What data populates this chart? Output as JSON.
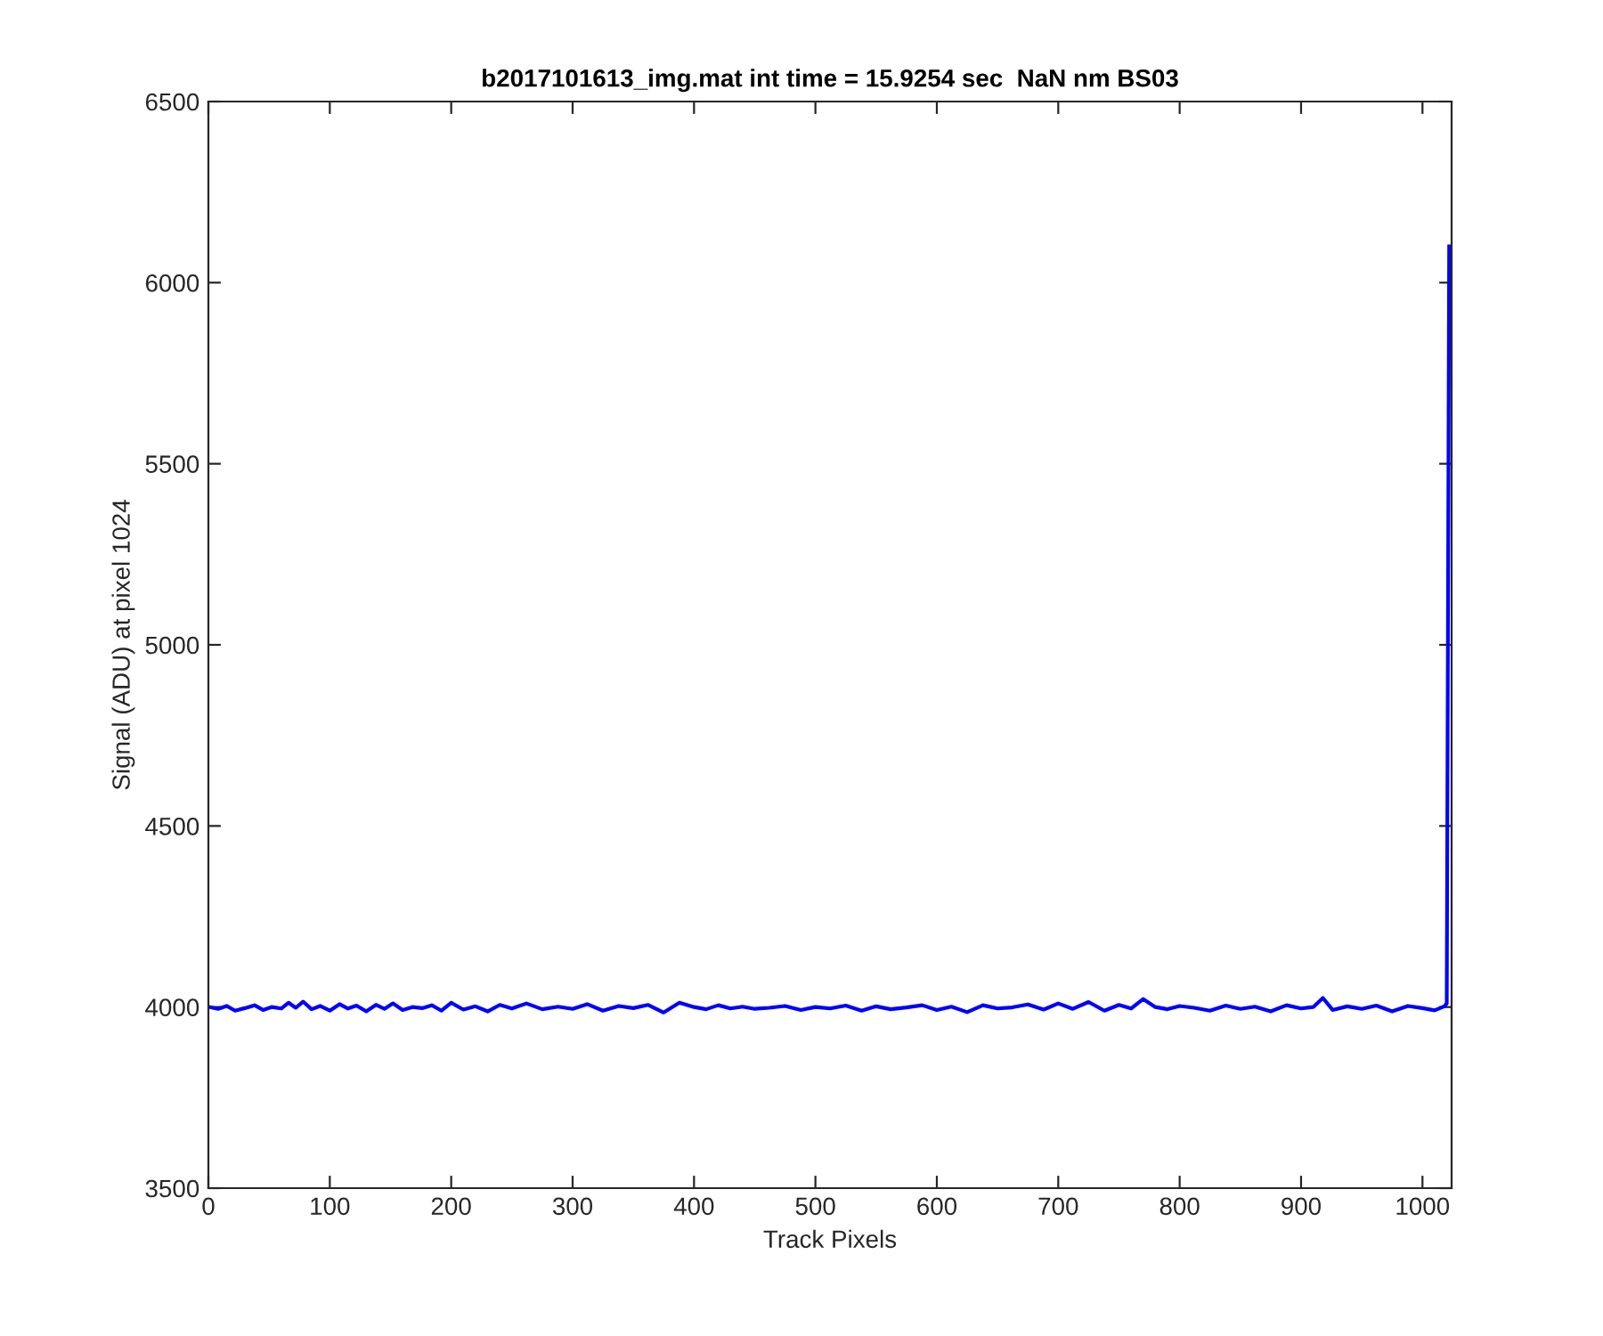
{
  "chart_data": {
    "type": "line",
    "title": "b2017101613_img.mat int time = 15.9254 sec  NaN nm BS03",
    "xlabel": "Track Pixels",
    "ylabel": "Signal (ADU) at pixel 1024",
    "xlim": [
      0,
      1024
    ],
    "ylim": [
      3500,
      6500
    ],
    "xticks": [
      0,
      100,
      200,
      300,
      400,
      500,
      600,
      700,
      800,
      900,
      1000
    ],
    "yticks": [
      3500,
      4000,
      4500,
      5000,
      5500,
      6000,
      6500
    ],
    "grid": false,
    "marker": "none",
    "line_style": "solid",
    "series": [
      {
        "color": "#0000ff",
        "x": [
          1,
          8,
          15,
          22,
          30,
          38,
          45,
          52,
          60,
          66,
          72,
          78,
          85,
          92,
          100,
          108,
          115,
          122,
          130,
          138,
          145,
          152,
          160,
          168,
          176,
          184,
          192,
          200,
          210,
          220,
          230,
          240,
          250,
          262,
          275,
          288,
          300,
          312,
          325,
          338,
          350,
          362,
          375,
          388,
          400,
          410,
          420,
          430,
          440,
          450,
          462,
          475,
          488,
          500,
          512,
          525,
          538,
          550,
          562,
          575,
          588,
          600,
          612,
          625,
          638,
          650,
          662,
          675,
          688,
          700,
          712,
          725,
          738,
          750,
          760,
          770,
          780,
          790,
          800,
          812,
          825,
          838,
          850,
          862,
          875,
          888,
          900,
          910,
          918,
          926,
          938,
          950,
          962,
          975,
          988,
          1000,
          1010,
          1018,
          1020,
          1022
        ],
        "values": [
          4000,
          3995,
          4003,
          3990,
          3997,
          4005,
          3992,
          4000,
          3996,
          4012,
          3998,
          4015,
          3994,
          4003,
          3990,
          4008,
          3996,
          4004,
          3988,
          4006,
          3995,
          4010,
          3992,
          4000,
          3997,
          4005,
          3990,
          4012,
          3993,
          4002,
          3988,
          4006,
          3996,
          4010,
          3994,
          4001,
          3995,
          4008,
          3990,
          4003,
          3997,
          4006,
          3985,
          4012,
          4000,
          3994,
          4005,
          3996,
          4001,
          3995,
          3998,
          4003,
          3992,
          4000,
          3996,
          4004,
          3990,
          4002,
          3994,
          3999,
          4005,
          3992,
          4001,
          3986,
          4005,
          3996,
          3999,
          4007,
          3993,
          4010,
          3995,
          4014,
          3990,
          4006,
          3996,
          4022,
          4000,
          3994,
          4003,
          3998,
          3990,
          4004,
          3995,
          4001,
          3988,
          4005,
          3996,
          4000,
          4025,
          3992,
          4002,
          3995,
          4004,
          3988,
          4003,
          3997,
          3991,
          4002,
          4010,
          6100
        ]
      }
    ]
  }
}
